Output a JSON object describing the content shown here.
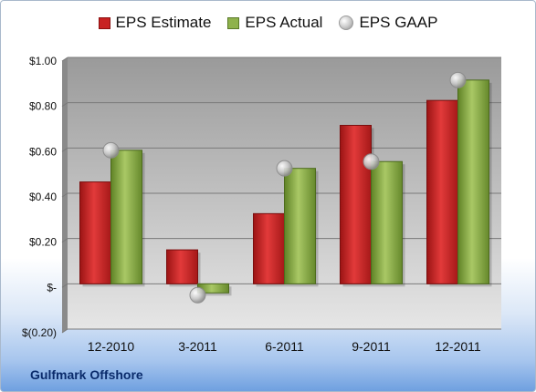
{
  "chart_data": {
    "type": "bar",
    "categories": [
      "12-2010",
      "3-2011",
      "6-2011",
      "9-2011",
      "12-2011"
    ],
    "series": [
      {
        "name": "EPS Estimate",
        "kind": "bar",
        "color": "#c82222",
        "values": [
          0.45,
          0.15,
          0.31,
          0.7,
          0.81
        ]
      },
      {
        "name": "EPS Actual",
        "kind": "bar",
        "color": "#8fb24c",
        "values": [
          0.59,
          -0.04,
          0.51,
          0.54,
          0.9
        ]
      },
      {
        "name": "EPS GAAP",
        "kind": "marker",
        "color": "#b0b0b0",
        "values": [
          0.59,
          -0.05,
          0.51,
          0.54,
          0.9
        ]
      }
    ],
    "y_ticks": [
      {
        "value": 1.0,
        "label": "$1.00"
      },
      {
        "value": 0.8,
        "label": "$0.80"
      },
      {
        "value": 0.6,
        "label": "$0.60"
      },
      {
        "value": 0.4,
        "label": "$0.40"
      },
      {
        "value": 0.2,
        "label": "$0.20"
      },
      {
        "value": 0.0,
        "label": "$-"
      },
      {
        "value": -0.2,
        "label": "$(0.20)"
      }
    ],
    "ylim": [
      -0.2,
      1.0
    ],
    "grid": true,
    "legend_position": "top"
  },
  "company_label": "Gulfmark Offshore"
}
